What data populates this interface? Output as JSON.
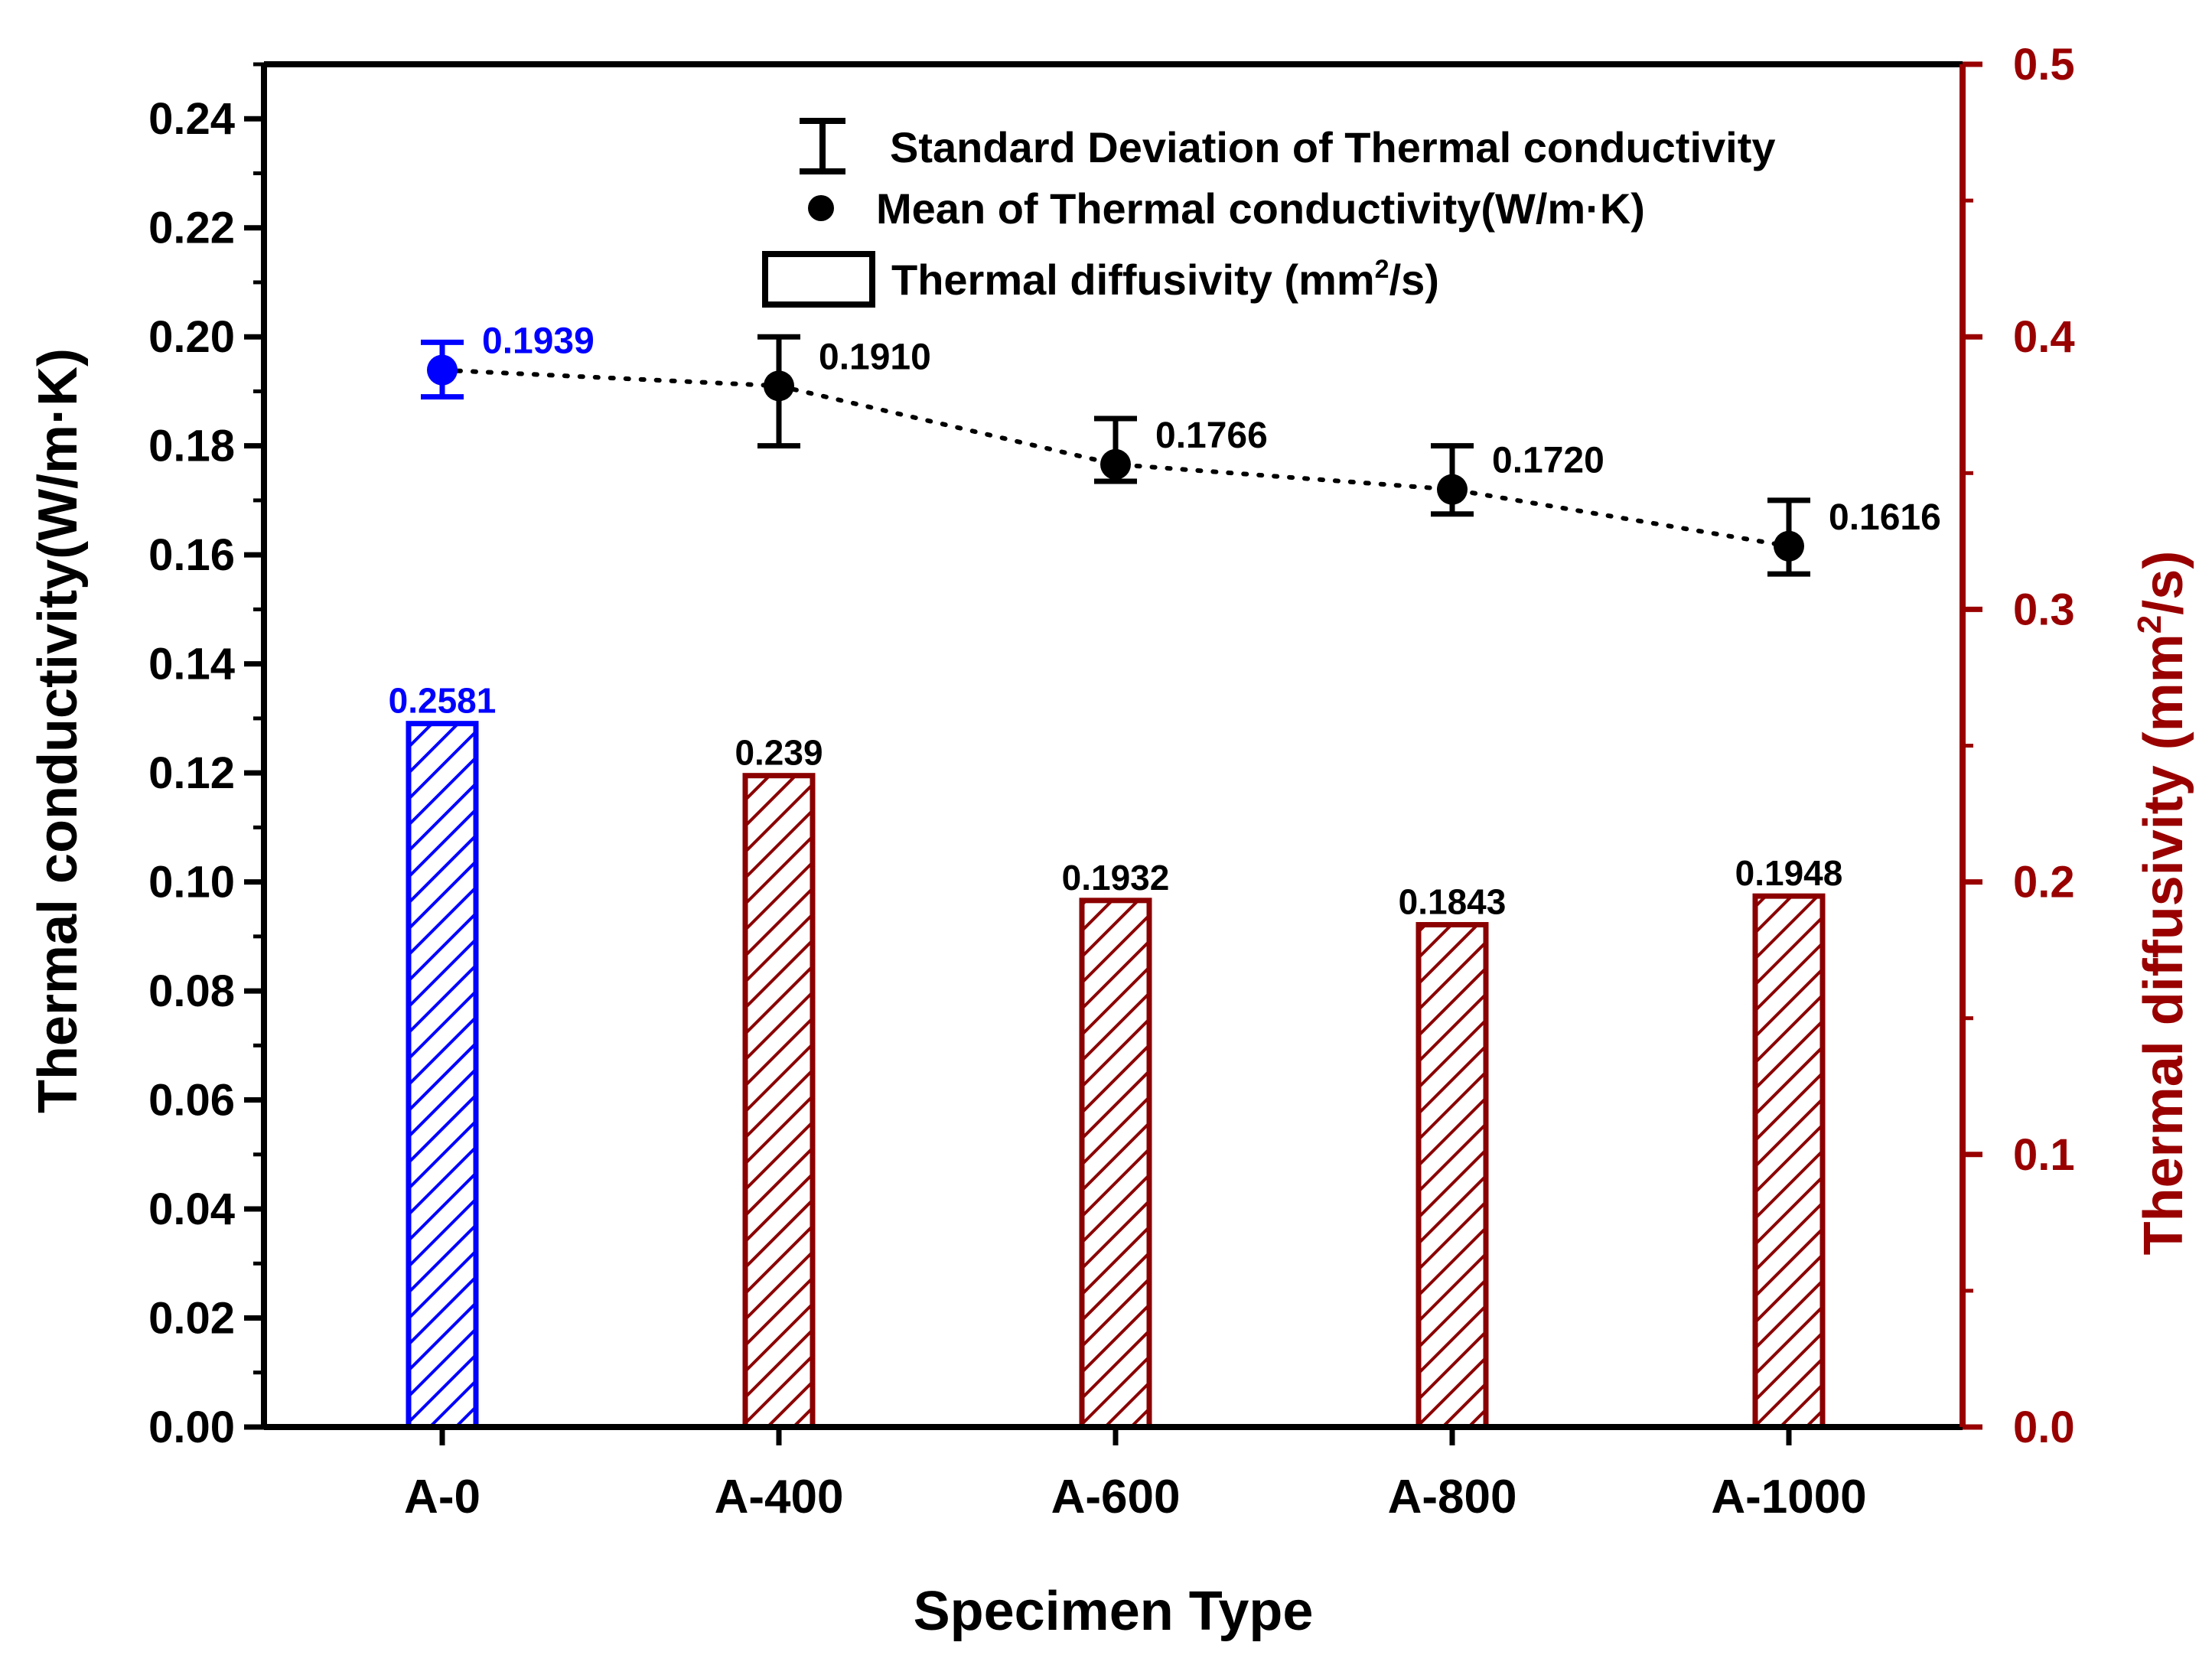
{
  "colors": {
    "axis_left": "#000000",
    "axis_right": "#990000",
    "bar_highlight": "#0000ff",
    "bar_default": "#8b0000",
    "point_highlight": "#0000ff",
    "point_default": "#000000"
  },
  "chart_data": {
    "type": "bar",
    "xlabel": "Specimen Type",
    "ylabel_left": "Thermal conductivity(W/m·K)",
    "ylabel_right_prefix": "Thermal diffusivity (mm",
    "ylabel_right_sup": "2",
    "ylabel_right_suffix": "/s)",
    "categories": [
      "A-0",
      "A-400",
      "A-600",
      "A-800",
      "A-1000"
    ],
    "ylim_left": [
      0,
      0.25
    ],
    "ylim_right": [
      0,
      0.5
    ],
    "left_ticks": [
      "0.00",
      "0.02",
      "0.04",
      "0.06",
      "0.08",
      "0.10",
      "0.12",
      "0.14",
      "0.16",
      "0.18",
      "0.20",
      "0.22",
      "0.24"
    ],
    "right_ticks": [
      "0.0",
      "0.1",
      "0.2",
      "0.3",
      "0.4",
      "0.5"
    ],
    "series": [
      {
        "name": "Thermal diffusivity (mm²/s)",
        "axis": "right",
        "kind": "bar",
        "values": [
          0.2581,
          0.239,
          0.1932,
          0.1843,
          0.1948
        ],
        "labels": [
          "0.2581",
          "0.239",
          "0.1932",
          "0.1843",
          "0.1948"
        ]
      },
      {
        "name": "Mean of Thermal conductivity(W/m·K)",
        "axis": "left",
        "kind": "point",
        "values": [
          0.1939,
          0.191,
          0.1766,
          0.172,
          0.1616
        ],
        "labels": [
          "0.1939",
          "0.1910",
          "0.1766",
          "0.1720",
          "0.1616"
        ],
        "error_low": [
          0.189,
          0.18,
          0.1735,
          0.1675,
          0.1565
        ],
        "error_high": [
          0.199,
          0.2,
          0.185,
          0.18,
          0.17
        ]
      }
    ],
    "legend": {
      "position": "top-right",
      "items": [
        "Standard Deviation of Thermal conductivity",
        "Mean of Thermal conductivity(W/m·K)"
      ],
      "bar_item_prefix": "Thermal diffusivity (mm",
      "bar_item_sup": "2",
      "bar_item_suffix": "/s)"
    }
  }
}
